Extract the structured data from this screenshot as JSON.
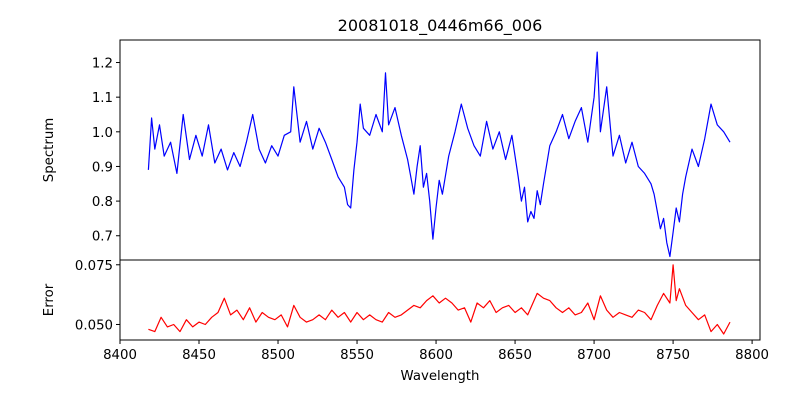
{
  "chart_data": [
    {
      "type": "line",
      "title": "20081018_0446m66_006",
      "xlabel": "",
      "ylabel": "Spectrum",
      "xlim": [
        8400,
        8805
      ],
      "ylim": [
        0.63,
        1.265
      ],
      "yticks": [
        0.7,
        0.8,
        0.9,
        1.0,
        1.1,
        1.2
      ],
      "ytick_labels": [
        "0.7",
        "0.8",
        "0.9",
        "1.0",
        "1.1",
        "1.2"
      ],
      "grid": false,
      "series": [
        {
          "color": "#0000ff",
          "x": [
            8418,
            8420,
            8422,
            8425,
            8428,
            8432,
            8436,
            8440,
            8444,
            8448,
            8452,
            8456,
            8460,
            8464,
            8468,
            8472,
            8476,
            8480,
            8484,
            8488,
            8492,
            8496,
            8500,
            8504,
            8508,
            8510,
            8514,
            8518,
            8522,
            8526,
            8530,
            8534,
            8538,
            8542,
            8544,
            8546,
            8548,
            8550,
            8552,
            8554,
            8558,
            8562,
            8566,
            8568,
            8570,
            8574,
            8578,
            8582,
            8584,
            8586,
            8588,
            8590,
            8592,
            8594,
            8596,
            8598,
            8600,
            8602,
            8604,
            8608,
            8612,
            8616,
            8620,
            8624,
            8628,
            8632,
            8636,
            8640,
            8644,
            8648,
            8652,
            8654,
            8656,
            8658,
            8660,
            8662,
            8664,
            8666,
            8668,
            8672,
            8676,
            8680,
            8684,
            8688,
            8692,
            8696,
            8700,
            8702,
            8704,
            8708,
            8712,
            8716,
            8720,
            8724,
            8728,
            8732,
            8736,
            8738,
            8740,
            8742,
            8744,
            8746,
            8748,
            8750,
            8752,
            8754,
            8756,
            8758,
            8762,
            8766,
            8770,
            8774,
            8778,
            8782,
            8786
          ],
          "y": [
            0.89,
            1.04,
            0.95,
            1.02,
            0.93,
            0.97,
            0.88,
            1.05,
            0.92,
            0.99,
            0.93,
            1.02,
            0.91,
            0.95,
            0.89,
            0.94,
            0.9,
            0.97,
            1.05,
            0.95,
            0.91,
            0.96,
            0.93,
            0.99,
            1.0,
            1.13,
            0.97,
            1.03,
            0.95,
            1.01,
            0.97,
            0.92,
            0.87,
            0.84,
            0.79,
            0.78,
            0.89,
            0.97,
            1.08,
            1.01,
            0.99,
            1.05,
            1.0,
            1.17,
            1.02,
            1.07,
            0.99,
            0.92,
            0.87,
            0.82,
            0.9,
            0.96,
            0.84,
            0.88,
            0.8,
            0.69,
            0.78,
            0.86,
            0.82,
            0.93,
            1.0,
            1.08,
            1.01,
            0.96,
            0.93,
            1.03,
            0.95,
            1.0,
            0.92,
            0.99,
            0.87,
            0.8,
            0.84,
            0.74,
            0.77,
            0.75,
            0.83,
            0.79,
            0.85,
            0.96,
            1.0,
            1.05,
            0.98,
            1.03,
            1.07,
            0.97,
            1.1,
            1.23,
            1.0,
            1.13,
            0.93,
            0.99,
            0.91,
            0.97,
            0.9,
            0.88,
            0.85,
            0.82,
            0.77,
            0.72,
            0.75,
            0.68,
            0.64,
            0.71,
            0.78,
            0.74,
            0.82,
            0.87,
            0.95,
            0.9,
            0.98,
            1.08,
            1.02,
            1.0,
            0.97
          ]
        }
      ]
    },
    {
      "type": "line",
      "title": "",
      "xlabel": "Wavelength",
      "ylabel": "Error",
      "xlim": [
        8400,
        8805
      ],
      "ylim": [
        0.0435,
        0.077
      ],
      "xticks": [
        8400,
        8450,
        8500,
        8550,
        8600,
        8650,
        8700,
        8750,
        8800
      ],
      "xtick_labels": [
        "8400",
        "8450",
        "8500",
        "8550",
        "8600",
        "8650",
        "8700",
        "8750",
        "8800"
      ],
      "yticks": [
        0.05,
        0.075
      ],
      "ytick_labels": [
        "0.050",
        "0.075"
      ],
      "grid": false,
      "series": [
        {
          "color": "#ff0000",
          "x": [
            8418,
            8422,
            8426,
            8430,
            8434,
            8438,
            8442,
            8446,
            8450,
            8454,
            8458,
            8462,
            8466,
            8470,
            8474,
            8478,
            8482,
            8486,
            8490,
            8494,
            8498,
            8502,
            8506,
            8510,
            8514,
            8518,
            8522,
            8526,
            8530,
            8534,
            8538,
            8542,
            8546,
            8550,
            8554,
            8558,
            8562,
            8566,
            8570,
            8574,
            8578,
            8582,
            8586,
            8590,
            8594,
            8598,
            8602,
            8606,
            8610,
            8614,
            8618,
            8622,
            8626,
            8630,
            8634,
            8638,
            8642,
            8646,
            8650,
            8654,
            8658,
            8662,
            8664,
            8668,
            8672,
            8676,
            8680,
            8684,
            8688,
            8692,
            8696,
            8700,
            8704,
            8708,
            8712,
            8716,
            8720,
            8724,
            8728,
            8732,
            8736,
            8740,
            8744,
            8748,
            8750,
            8752,
            8754,
            8758,
            8762,
            8766,
            8770,
            8774,
            8778,
            8782,
            8786
          ],
          "y": [
            0.048,
            0.047,
            0.053,
            0.049,
            0.05,
            0.047,
            0.052,
            0.049,
            0.051,
            0.05,
            0.053,
            0.055,
            0.061,
            0.054,
            0.056,
            0.052,
            0.057,
            0.051,
            0.055,
            0.053,
            0.052,
            0.054,
            0.049,
            0.058,
            0.053,
            0.051,
            0.052,
            0.054,
            0.052,
            0.056,
            0.053,
            0.055,
            0.051,
            0.055,
            0.052,
            0.054,
            0.052,
            0.051,
            0.055,
            0.053,
            0.054,
            0.056,
            0.058,
            0.057,
            0.06,
            0.062,
            0.059,
            0.061,
            0.059,
            0.056,
            0.057,
            0.051,
            0.059,
            0.057,
            0.06,
            0.055,
            0.057,
            0.058,
            0.055,
            0.057,
            0.054,
            0.06,
            0.063,
            0.061,
            0.06,
            0.057,
            0.055,
            0.057,
            0.054,
            0.055,
            0.059,
            0.052,
            0.062,
            0.056,
            0.053,
            0.055,
            0.054,
            0.053,
            0.056,
            0.055,
            0.052,
            0.058,
            0.063,
            0.059,
            0.075,
            0.06,
            0.065,
            0.058,
            0.055,
            0.052,
            0.054,
            0.047,
            0.05,
            0.046,
            0.051
          ]
        }
      ]
    }
  ]
}
